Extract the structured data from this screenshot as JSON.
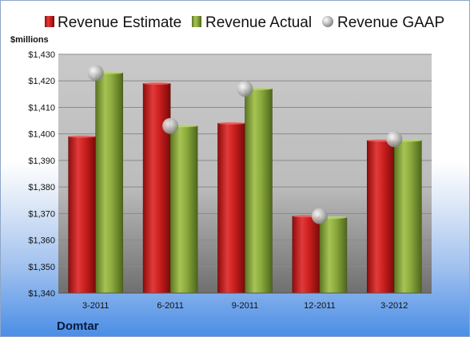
{
  "chart_data": {
    "type": "bar",
    "ylabel": "$millions",
    "ylim": [
      1340,
      1430
    ],
    "yticks": [
      1340,
      1350,
      1360,
      1370,
      1380,
      1390,
      1400,
      1410,
      1420,
      1430
    ],
    "ytick_labels": [
      "$1,340",
      "$1,350",
      "$1,360",
      "$1,370",
      "$1,380",
      "$1,390",
      "$1,400",
      "$1,410",
      "$1,420",
      "$1,430"
    ],
    "categories": [
      "3-2011",
      "6-2011",
      "9-2011",
      "12-2011",
      "3-2012"
    ],
    "series": [
      {
        "name": "Revenue Estimate",
        "kind": "bar",
        "color": "#cc1f1f",
        "values": [
          1399,
          1419,
          1404,
          1369,
          1397.5
        ]
      },
      {
        "name": "Revenue Actual",
        "kind": "bar",
        "color": "#8aaa3c",
        "values": [
          1423,
          1403,
          1417,
          1368.5,
          1397.5
        ]
      },
      {
        "name": "Revenue GAAP",
        "kind": "marker",
        "color": "#b8b8b8",
        "values": [
          1423,
          1403,
          1417,
          1369,
          1398
        ]
      }
    ],
    "grid": true,
    "legend_position": "top",
    "company": "Domtar"
  }
}
